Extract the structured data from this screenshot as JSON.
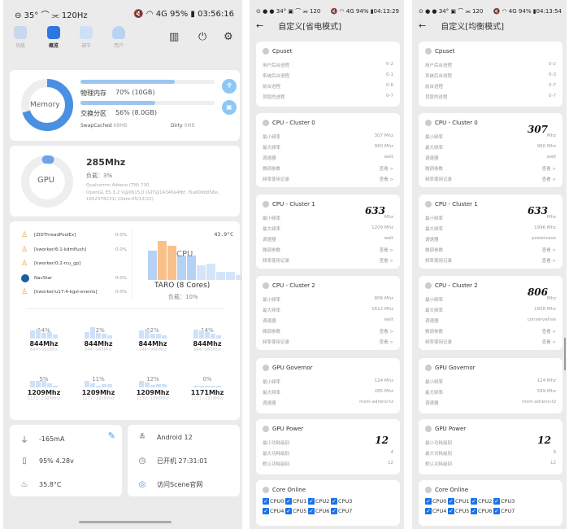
{
  "colors": {
    "accent": "#4a90e2",
    "bar": "#9ec5f0",
    "orange": "#f9c08a",
    "check": "#1a73e8"
  },
  "p1": {
    "status": {
      "left": "⊖ 35° ⌒ ⫘ 120Hz",
      "right": "🔇 ◠ 4G 95% ▮ 03:56:16",
      "time": "03:56:16",
      "battery": "95%"
    },
    "nav": [
      {
        "label": "功能",
        "icon": "grid-icon"
      },
      {
        "label": "概览",
        "icon": "home-icon"
      },
      {
        "label": "调节",
        "icon": "hexagon-icon"
      },
      {
        "label": "用户",
        "icon": "user-icon"
      }
    ],
    "memory": {
      "label": "Memory",
      "physical_label": "物理内存",
      "physical_value": "70% (10GB)",
      "physical_pct": 70,
      "swap_label": "交换分区",
      "swap_value": "56% (8.0GB)",
      "swap_pct": 56,
      "swapcached_label": "SwapCached",
      "swapcached_value": "68MB",
      "dirty_label": "Dirty",
      "dirty_value": "0MB"
    },
    "gpu": {
      "label": "GPU",
      "freq": "285Mhz",
      "load": "负载：3%",
      "load_pct": 3,
      "renderer": "Qualcomm Adreno (TM) 730",
      "version": "OpenGL ES 3.2 V@0615.0 (GIT@14346e4fbf, I5a600b858e, 1652378231) (Date:05/12/22)"
    },
    "cpu": {
      "temp": "43.9°C",
      "label": "CPU",
      "chip": "TARO (8 Cores)",
      "load": "负载：10%",
      "processes": [
        {
          "name": "[ZIDThreadPoolEx]",
          "value": "0.0%"
        },
        {
          "name": "[kworker/6:1-kdmflush]",
          "value": "0.0%"
        },
        {
          "name": "[kworker/0:2-rcu_gp]",
          "value": ""
        },
        {
          "name": "NavStar",
          "value": "0.0%"
        },
        {
          "name": "[kworker/u17:4-kgsl-events]",
          "value": "0.0%"
        }
      ],
      "cores": [
        {
          "pct": "14%",
          "mhz": "844Mhz",
          "range": "844~960Mhz"
        },
        {
          "pct": "12%",
          "mhz": "844Mhz",
          "range": "844~960Mhz"
        },
        {
          "pct": "12%",
          "mhz": "844Mhz",
          "range": "844~960Mhz"
        },
        {
          "pct": "14%",
          "mhz": "844Mhz",
          "range": "844~960Mhz"
        },
        {
          "pct": "5%",
          "mhz": "1209Mhz",
          "range": "1171~1996Mhz"
        },
        {
          "pct": "11%",
          "mhz": "1209Mhz",
          "range": "1171~1996Mhz"
        },
        {
          "pct": "12%",
          "mhz": "1209Mhz",
          "range": "1171~1996Mhz"
        },
        {
          "pct": "0%",
          "mhz": "1171Mhz",
          "range": "1171~1958Mhz"
        }
      ]
    },
    "battery": {
      "current": "-165mA",
      "level": "95%  4.28v",
      "temp": "35.8°C"
    },
    "system": {
      "android": "Android 12",
      "uptime": "已开机  27:31:01",
      "website": "访问Scene官网"
    }
  },
  "screens": [
    {
      "status_time": "04:13:29",
      "status_left": "⊙ ● ● 34° ▣ ⌒ ⫘ 120",
      "status_right": "🔇 ◠ 4G 94% ▮",
      "title": "自定义[省电模式]",
      "cards": [
        {
          "title": "Cpuset",
          "rows": [
            [
              "用户后台进程",
              "0-2"
            ],
            [
              "系统后台进程",
              "0-1"
            ],
            [
              "前台进程",
              "0-6"
            ],
            [
              "顶层的进程",
              "0-7"
            ]
          ]
        },
        {
          "title": "CPU - Cluster 0",
          "rows": [
            [
              "最小频率",
              "307 Mhz"
            ],
            [
              "最大频率",
              "960 Mhz"
            ],
            [
              "调速器",
              "walt"
            ],
            [
              "微调参数",
              "查看 >"
            ],
            [
              "频率使用记录",
              "查看 >"
            ]
          ]
        },
        {
          "title": "CPU - Cluster 1",
          "rows": [
            [
              "最小频率",
              "Mhz"
            ],
            [
              "最大频率",
              "1209 Mhz"
            ],
            [
              "调速器",
              "walt"
            ],
            [
              "微调参数",
              "查看 >"
            ],
            [
              "频率使用记录",
              "查看 >"
            ]
          ],
          "hand": "633"
        },
        {
          "title": "CPU - Cluster 2",
          "rows": [
            [
              "最小频率",
              "806 Mhz"
            ],
            [
              "最大频率",
              "1612 Mhz"
            ],
            [
              "调速器",
              "walt"
            ],
            [
              "微调参数",
              "查看 >"
            ],
            [
              "频率使用记录",
              "查看 >"
            ]
          ]
        },
        {
          "title": "GPU Governor",
          "rows": [
            [
              "最小频率",
              "124 Mhz"
            ],
            [
              "最大频率",
              "285 Mhz"
            ],
            [
              "调速器",
              "msm-adreno-tz"
            ]
          ]
        },
        {
          "title": "GPU Power",
          "rows": [
            [
              "最小功耗级别",
              ""
            ],
            [
              "最大功耗级别",
              "4"
            ],
            [
              "默认功耗级别",
              "12"
            ]
          ],
          "hand": "12"
        },
        {
          "title": "Core Online",
          "cpus": [
            "CPU0",
            "CPU1",
            "CPU2",
            "CPU3",
            "CPU4",
            "CPU5",
            "CPU6",
            "CPU7"
          ]
        }
      ]
    },
    {
      "status_time": "04:13:54",
      "status_left": "⊙ ● ● 34° ▣ ⌒ ⫘ 120",
      "status_right": "🔇 ◠ 4G 94% ▮",
      "title": "自定义[均衡模式]",
      "cards": [
        {
          "title": "Cpuset",
          "rows": [
            [
              "用户后台进程",
              "0-2"
            ],
            [
              "系统后台进程",
              "0-3"
            ],
            [
              "前台进程",
              "0-7"
            ],
            [
              "顶层的进程",
              "0-7"
            ]
          ]
        },
        {
          "title": "CPU - Cluster 0",
          "rows": [
            [
              "最小频率",
              "Mhz"
            ],
            [
              "最大频率",
              "960 Mhz"
            ],
            [
              "调速器",
              "walt"
            ],
            [
              "微调参数",
              "查看 >"
            ],
            [
              "频率使用记录",
              "查看 >"
            ]
          ],
          "hand": "307"
        },
        {
          "title": "CPU - Cluster 1",
          "rows": [
            [
              "最小频率",
              "Mhz"
            ],
            [
              "最大频率",
              "1996 Mhz"
            ],
            [
              "调速器",
              "powersave"
            ],
            [
              "微调参数",
              "查看 >"
            ],
            [
              "频率使用记录",
              "查看 >"
            ]
          ],
          "hand": "633"
        },
        {
          "title": "CPU - Cluster 2",
          "rows": [
            [
              "最小频率",
              "Mhz"
            ],
            [
              "最大频率",
              "1958 Mhz"
            ],
            [
              "调速器",
              "conservative"
            ],
            [
              "微调参数",
              "查看 >"
            ],
            [
              "频率使用记录",
              "查看 >"
            ]
          ],
          "hand": "806"
        },
        {
          "title": "GPU Governor",
          "rows": [
            [
              "最小频率",
              "124 Mhz"
            ],
            [
              "最大频率",
              "599 Mhz"
            ],
            [
              "调速器",
              "msm-adreno-tz"
            ]
          ]
        },
        {
          "title": "GPU Power",
          "rows": [
            [
              "最小功耗级别",
              ""
            ],
            [
              "最大功耗级别",
              "9"
            ],
            [
              "默认功耗级别",
              "12"
            ]
          ],
          "hand": "12"
        },
        {
          "title": "Core Online",
          "cpus": [
            "CPU0",
            "CPU1",
            "CPU2",
            "CPU3",
            "CPU4",
            "CPU5",
            "CPU6",
            "CPU7"
          ]
        }
      ]
    }
  ]
}
